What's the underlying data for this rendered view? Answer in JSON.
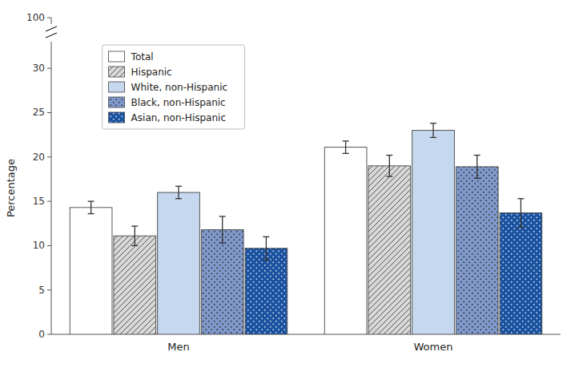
{
  "chart_data": {
    "type": "bar",
    "categories": [
      "Men",
      "Women"
    ],
    "series": [
      {
        "name": "Total",
        "color": "#ffffff",
        "values": [
          14.3,
          21.1
        ],
        "errors": [
          0.7,
          0.7
        ]
      },
      {
        "name": "Hispanic",
        "color": "#d8d8d8",
        "values": [
          11.1,
          19.0
        ],
        "errors": [
          1.1,
          1.2
        ]
      },
      {
        "name": "White, non-Hispanic",
        "color": "#c5d8ef",
        "values": [
          16.0,
          23.0
        ],
        "errors": [
          0.7,
          0.8
        ]
      },
      {
        "name": "Black, non-Hispanic",
        "color": "#8099cc",
        "values": [
          11.8,
          18.9
        ],
        "errors": [
          1.5,
          1.3
        ]
      },
      {
        "name": "Asian, non-Hispanic",
        "color": "#1a52a0",
        "values": [
          9.7,
          13.7
        ],
        "errors": [
          1.3,
          1.6
        ]
      }
    ],
    "ylabel": "Percentage",
    "ylim": [
      0,
      33
    ],
    "yticks": [
      0,
      5,
      10,
      15,
      20,
      25,
      30
    ],
    "annotations": [
      {
        "text": "100"
      }
    ],
    "legend": "upper left",
    "grid": false
  }
}
